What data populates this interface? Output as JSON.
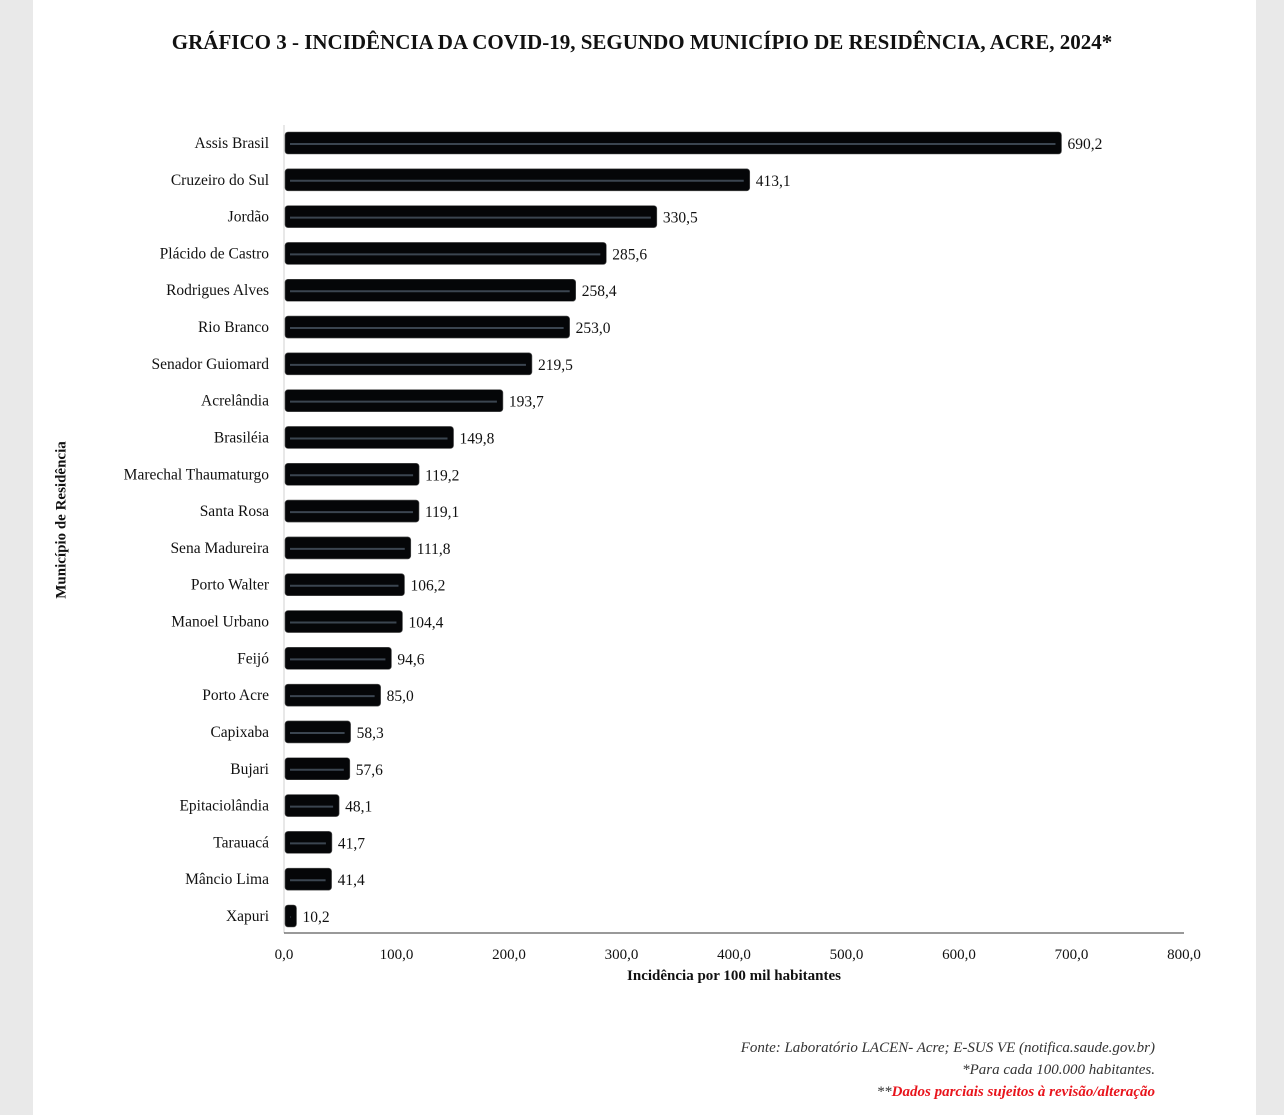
{
  "chart_data": {
    "type": "bar",
    "orientation": "horizontal",
    "title": "GRÁFICO 3 - INCIDÊNCIA DA COVID-19, SEGUNDO MUNICÍPIO DE RESIDÊNCIA, ACRE, 2024*",
    "xlabel": "Incidência por 100 mil habitantes",
    "ylabel": "Município de Residência",
    "xlim": [
      0,
      800
    ],
    "xticks": [
      "0,0",
      "100,0",
      "200,0",
      "300,0",
      "400,0",
      "500,0",
      "600,0",
      "700,0",
      "800,0"
    ],
    "grid": false,
    "bar_color": "#050608",
    "categories": [
      "Assis Brasil",
      "Cruzeiro do Sul",
      "Jordão",
      "Plácido de Castro",
      "Rodrigues Alves",
      "Rio Branco",
      "Senador Guiomard",
      "Acrelândia",
      "Brasiléia",
      "Marechal Thaumaturgo",
      "Santa Rosa",
      "Sena Madureira",
      "Porto Walter",
      "Manoel Urbano",
      "Feijó",
      "Porto Acre",
      "Capixaba",
      "Bujari",
      "Epitaciolândia",
      "Tarauacá",
      "Mâncio Lima",
      "Xapuri"
    ],
    "values": [
      690.2,
      413.1,
      330.5,
      285.6,
      258.4,
      253.0,
      219.5,
      193.7,
      149.8,
      119.2,
      119.1,
      111.8,
      106.2,
      104.4,
      94.6,
      85.0,
      58.3,
      57.6,
      48.1,
      41.7,
      41.4,
      10.2
    ],
    "data_labels": [
      "690,2",
      "413,1",
      "330,5",
      "285,6",
      "258,4",
      "253,0",
      "219,5",
      "193,7",
      "149,8",
      "119,2",
      "119,1",
      "111,8",
      "106,2",
      "104,4",
      "94,6",
      "85,0",
      "58,3",
      "57,6",
      "48,1",
      "41,7",
      "41,4",
      "10,2"
    ]
  },
  "footer": {
    "source": "Fonte: Laboratório LACEN- Acre; E-SUS VE (notifica.saude.gov.br)",
    "note": "*Para cada 100.000 habitantes.",
    "partial_prefix": "**",
    "partial": "Dados parciais sujeitos à revisão/alteração",
    "partial_color": "#e8141c"
  }
}
